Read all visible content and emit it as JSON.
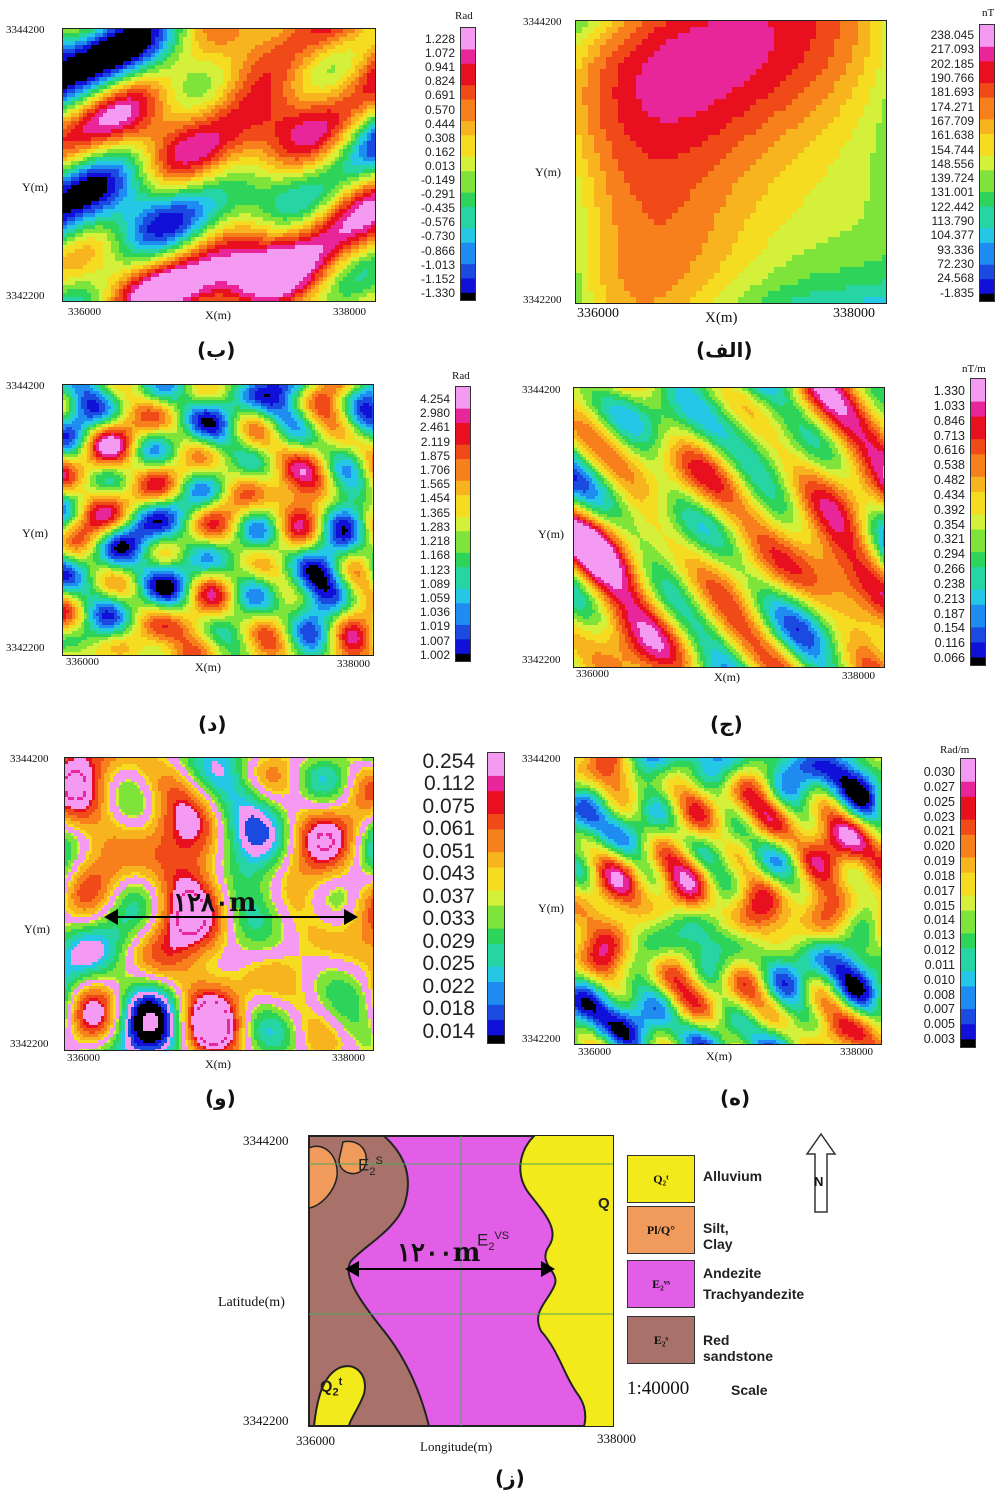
{
  "panels": [
    {
      "id": "alef",
      "caption": "(الف)",
      "y_top": "3344200",
      "y_bottom": "3342200",
      "y_label": "Y(m)",
      "x_left": "336000",
      "x_right": "338000",
      "x_label": "X(m)",
      "unit": "nT",
      "colorbar": [
        "238.045",
        "217.093",
        "202.185",
        "190.766",
        "181.693",
        "174.271",
        "167.709",
        "161.638",
        "154.744",
        "148.556",
        "139.724",
        "131.001",
        "122.442",
        "113.790",
        "104.377",
        "93.336",
        "72.230",
        "24.568",
        "-1.835"
      ]
    },
    {
      "id": "be",
      "caption": "(ب)",
      "y_top": "3344200",
      "y_bottom": "3342200",
      "y_label": "Y(m)",
      "x_left": "336000",
      "x_right": "338000",
      "x_label": "X(m)",
      "unit": "Rad",
      "colorbar": [
        "1.228",
        "1.072",
        "0.941",
        "0.824",
        "0.691",
        "0.570",
        "0.444",
        "0.308",
        "0.162",
        "0.013",
        "-0.149",
        "-0.291",
        "-0.435",
        "-0.576",
        "-0.730",
        "-0.866",
        "-1.013",
        "-1.152",
        "-1.330"
      ]
    },
    {
      "id": "jim",
      "caption": "(ج)",
      "y_top": "3344200",
      "y_bottom": "3342200",
      "y_label": "Y(m)",
      "x_left": "336000",
      "x_right": "338000",
      "x_label": "X(m)",
      "unit": "nT/m",
      "colorbar": [
        "1.330",
        "1.033",
        "0.846",
        "0.713",
        "0.616",
        "0.538",
        "0.482",
        "0.434",
        "0.392",
        "0.354",
        "0.321",
        "0.294",
        "0.266",
        "0.238",
        "0.213",
        "0.187",
        "0.154",
        "0.116",
        "0.066"
      ]
    },
    {
      "id": "dal",
      "caption": "(د)",
      "y_top": "3344200",
      "y_bottom": "3342200",
      "y_label": "Y(m)",
      "x_left": "336000",
      "x_right": "338000",
      "x_label": "X(m)",
      "unit": "Rad",
      "colorbar": [
        "4.254",
        "2.980",
        "2.461",
        "2.119",
        "1.875",
        "1.706",
        "1.565",
        "1.454",
        "1.365",
        "1.283",
        "1.218",
        "1.168",
        "1.123",
        "1.089",
        "1.059",
        "1.036",
        "1.019",
        "1.007",
        "1.002"
      ]
    },
    {
      "id": "he",
      "caption": "(ه)",
      "y_top": "3344200",
      "y_bottom": "3342200",
      "y_label": "Y(m)",
      "x_left": "336000",
      "x_right": "338000",
      "x_label": "X(m)",
      "unit": "Rad/m",
      "colorbar": [
        "0.030",
        "0.027",
        "0.025",
        "0.023",
        "0.021",
        "0.020",
        "0.019",
        "0.018",
        "0.017",
        "0.015",
        "0.014",
        "0.013",
        "0.012",
        "0.011",
        "0.010",
        "0.008",
        "0.007",
        "0.005",
        "0.003"
      ]
    },
    {
      "id": "vav",
      "caption": "(و)",
      "y_top": "3344200",
      "y_bottom": "3342200",
      "y_label": "Y(m)",
      "x_left": "336000",
      "x_right": "338000",
      "x_label": "X(m)",
      "unit": "",
      "distance_label": "۱۲۸۰m",
      "colorbar": [
        "0.254",
        "0.112",
        "0.075",
        "0.061",
        "0.051",
        "0.043",
        "0.037",
        "0.033",
        "0.029",
        "0.025",
        "0.022",
        "0.018",
        "0.014"
      ]
    }
  ],
  "geology": {
    "caption": "(ز)",
    "y_top": "3344200",
    "y_bottom": "3342200",
    "y_label": "Latitude(m)",
    "x_left": "336000",
    "x_right": "338000",
    "x_label": "Longitude(m)",
    "distance_label": "۱۲۰۰m",
    "unit_labels": {
      "es2": "E",
      "evs2": "E",
      "q2": "Q",
      "q_edge": "Q"
    },
    "legend": [
      {
        "symbol": "Q₂ᵗ",
        "label": "Alluvium",
        "color": "#f3ea1c"
      },
      {
        "symbol": "Pl/Q°",
        "label": "Silt, Clay",
        "color": "#f09a5c"
      },
      {
        "symbol": "E₂ᵛˢ",
        "label": "Andezite Trachyandezite",
        "color": "#e35ee6"
      },
      {
        "symbol": "E₂ˢ",
        "label": "Red sandstone",
        "color": "#a8716a"
      }
    ],
    "north_label": "N",
    "scale_value": "1:40000",
    "scale_label": "Scale"
  }
}
